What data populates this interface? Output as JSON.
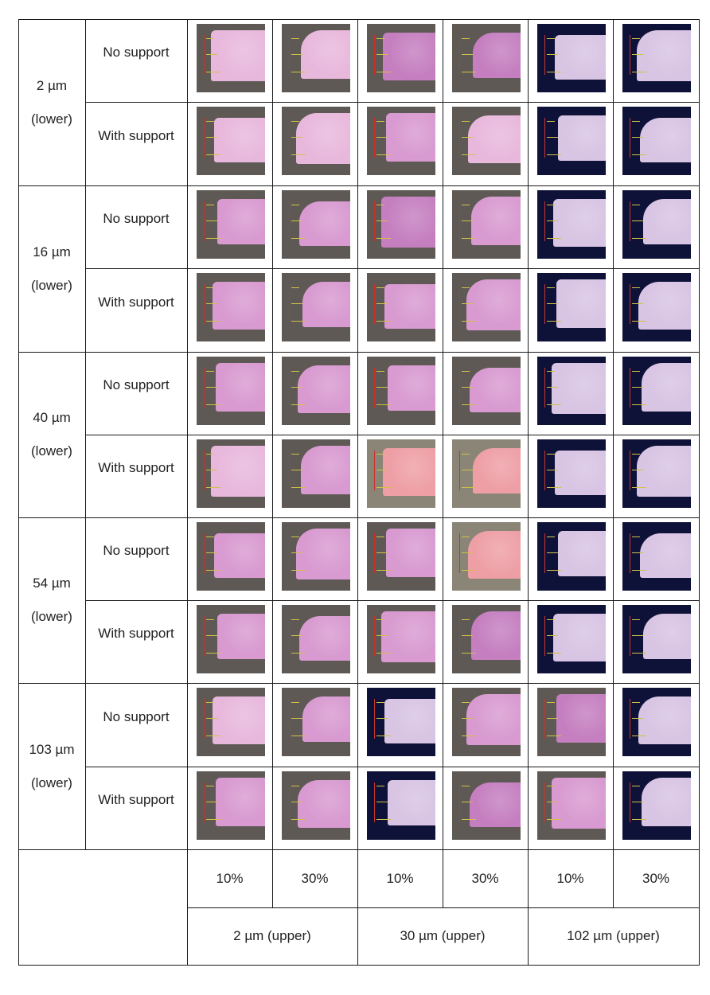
{
  "rows": [
    {
      "lower_size": "2 µm",
      "lower_tag": "(lower)",
      "conditions": [
        "No support",
        "With support"
      ]
    },
    {
      "lower_size": "16 µm",
      "lower_tag": "(lower)",
      "conditions": [
        "No support",
        "With support"
      ]
    },
    {
      "lower_size": "40 µm",
      "lower_tag": "(lower)",
      "conditions": [
        "No support",
        "With support"
      ]
    },
    {
      "lower_size": "54 µm",
      "lower_tag": "(lower)",
      "conditions": [
        "No support",
        "With support"
      ]
    },
    {
      "lower_size": "103 µm",
      "lower_tag": "(lower)",
      "conditions": [
        "No support",
        "With support"
      ]
    }
  ],
  "columns": {
    "percentages": [
      "10%",
      "30%",
      "10%",
      "30%",
      "10%",
      "30%"
    ],
    "upper_groups": [
      "2 µm (upper)",
      "30 µm (upper)",
      "102 µm (upper)"
    ]
  },
  "colors": {
    "background_gray": "#5e5955",
    "background_navy": "#0f1238",
    "background_tan": "#8a8577",
    "specimen_light_pink": "#e8b8dc",
    "specimen_pink": "#d89ad0",
    "specimen_magenta": "#c57fc0",
    "specimen_lavender": "#d8c4e3",
    "specimen_salmon": "#ee9fa6",
    "ruler_red": "#c2362d",
    "measure_yellow": "#d2c245"
  },
  "micrographs": [
    [
      "gray|light_pink",
      "gray|light_pink",
      "gray|magenta",
      "gray|magenta",
      "navy|lavender",
      "navy|lavender"
    ],
    [
      "gray|light_pink",
      "gray|light_pink",
      "gray|pink",
      "gray|light_pink",
      "navy|lavender",
      "navy|lavender"
    ],
    [
      "gray|pink",
      "gray|pink",
      "gray|magenta",
      "gray|pink",
      "navy|lavender",
      "navy|lavender"
    ],
    [
      "gray|pink",
      "gray|pink",
      "gray|pink",
      "gray|pink",
      "navy|lavender",
      "navy|lavender"
    ],
    [
      "gray|pink",
      "gray|pink",
      "gray|pink",
      "gray|pink",
      "navy|lavender",
      "navy|lavender"
    ],
    [
      "gray|light_pink",
      "gray|pink",
      "tan|salmon",
      "tan|salmon",
      "navy|lavender",
      "navy|lavender"
    ],
    [
      "gray|pink",
      "gray|pink",
      "gray|pink",
      "tan|salmon",
      "navy|lavender",
      "navy|lavender"
    ],
    [
      "gray|pink",
      "gray|pink",
      "gray|pink",
      "gray|magenta",
      "navy|lavender",
      "navy|lavender"
    ],
    [
      "gray|light_pink",
      "gray|pink",
      "navy|lavender",
      "gray|pink",
      "gray|magenta",
      "navy|lavender"
    ],
    [
      "gray|pink",
      "gray|pink",
      "navy|lavender",
      "gray|magenta",
      "gray|pink",
      "navy|lavender"
    ]
  ]
}
